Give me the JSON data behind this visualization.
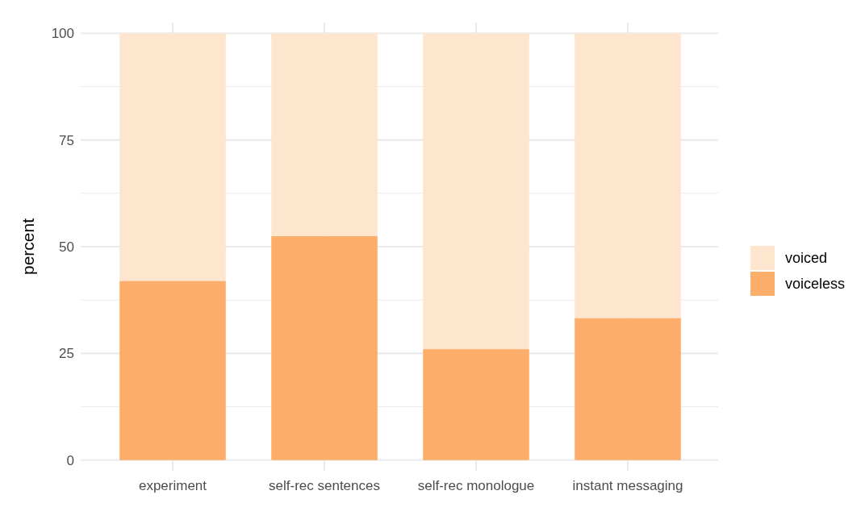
{
  "chart_data": {
    "type": "bar",
    "ylabel": "percent",
    "categories": [
      "experiment",
      "self-rec sentences",
      "self-rec monologue",
      "instant messaging"
    ],
    "series": [
      {
        "name": "voiceless",
        "color": "#fdae6b",
        "values": [
          42,
          52.5,
          26,
          33.3
        ]
      },
      {
        "name": "voiced",
        "color": "#fee6ce",
        "values": [
          58,
          47.5,
          74,
          66.7
        ]
      }
    ],
    "stacked": true,
    "ylim": [
      -2.5,
      102.5
    ],
    "yticks": [
      0,
      {
        "value": 12.5,
        "label": null
      },
      25,
      {
        "value": 37.5,
        "label": null
      },
      50,
      {
        "value": 62.5,
        "label": null
      },
      75,
      {
        "value": 87.5,
        "label": null
      },
      100
    ],
    "grid": true,
    "legend": "right"
  }
}
